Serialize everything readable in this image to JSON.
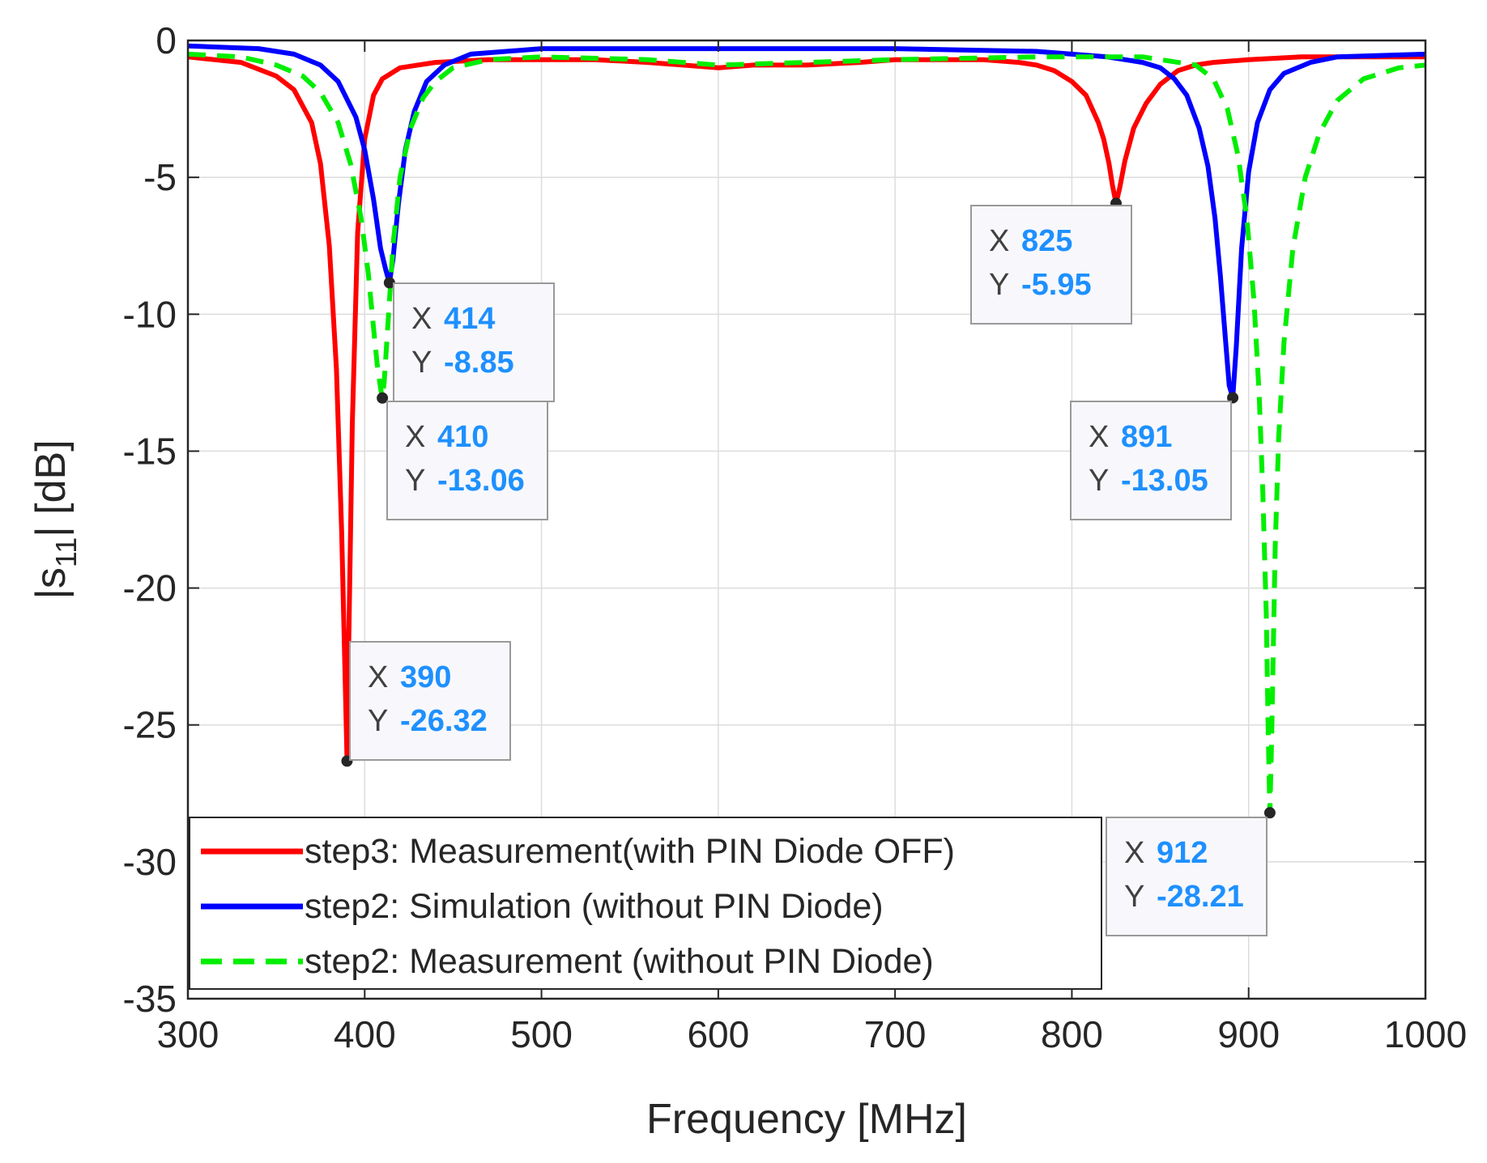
{
  "chart_data": {
    "type": "line",
    "xlabel": "Frequency [MHz]",
    "ylabel_main": "|s",
    "ylabel_sub": "11",
    "ylabel_tail": "| [dB]",
    "xlim": [
      300,
      1000
    ],
    "ylim": [
      -35,
      0
    ],
    "xticks": [
      300,
      400,
      500,
      600,
      700,
      800,
      900,
      1000
    ],
    "yticks": [
      0,
      -5,
      -10,
      -15,
      -20,
      -25,
      -30,
      -35
    ],
    "grid": true,
    "legend_position": "bottom-left",
    "series": [
      {
        "name": "step3: Measurement(with PIN Diode OFF)",
        "color": "#ff0000",
        "style": "solid",
        "x": [
          300,
          330,
          350,
          360,
          370,
          375,
          380,
          384,
          387,
          389,
          390,
          391,
          393,
          396,
          400,
          405,
          410,
          420,
          440,
          470,
          500,
          530,
          560,
          580,
          600,
          620,
          650,
          680,
          700,
          720,
          750,
          770,
          780,
          790,
          800,
          808,
          815,
          818,
          821,
          823,
          825,
          827,
          830,
          835,
          842,
          850,
          860,
          870,
          880,
          900,
          930,
          960,
          1000
        ],
        "values": [
          -0.6,
          -0.8,
          -1.3,
          -1.8,
          -3.0,
          -4.5,
          -7.5,
          -12.0,
          -18.0,
          -23.5,
          -26.32,
          -22.0,
          -14.0,
          -7.0,
          -3.6,
          -2.0,
          -1.4,
          -1.0,
          -0.8,
          -0.7,
          -0.7,
          -0.7,
          -0.8,
          -0.9,
          -1.0,
          -0.9,
          -0.9,
          -0.8,
          -0.7,
          -0.7,
          -0.7,
          -0.8,
          -0.9,
          -1.1,
          -1.5,
          -2.0,
          -3.0,
          -3.6,
          -4.5,
          -5.3,
          -5.95,
          -5.4,
          -4.4,
          -3.2,
          -2.3,
          -1.6,
          -1.1,
          -0.9,
          -0.8,
          -0.7,
          -0.6,
          -0.6,
          -0.6
        ]
      },
      {
        "name": "step2: Simulation (without PIN Diode)",
        "color": "#0000ff",
        "style": "solid",
        "x": [
          300,
          340,
          360,
          375,
          385,
          395,
          400,
          405,
          409,
          412,
          414,
          416,
          419,
          423,
          428,
          435,
          445,
          460,
          500,
          600,
          700,
          780,
          820,
          840,
          850,
          858,
          865,
          872,
          877,
          881,
          884,
          887,
          889,
          891,
          893,
          896,
          900,
          905,
          912,
          920,
          935,
          950,
          1000
        ],
        "values": [
          -0.2,
          -0.3,
          -0.5,
          -0.9,
          -1.5,
          -2.8,
          -4.0,
          -5.8,
          -7.6,
          -8.4,
          -8.85,
          -8.0,
          -6.0,
          -4.0,
          -2.6,
          -1.5,
          -0.9,
          -0.5,
          -0.3,
          -0.3,
          -0.3,
          -0.4,
          -0.6,
          -0.8,
          -1.0,
          -1.4,
          -2.0,
          -3.2,
          -4.6,
          -6.5,
          -8.6,
          -11.0,
          -12.6,
          -13.05,
          -11.2,
          -7.6,
          -4.8,
          -3.0,
          -1.8,
          -1.2,
          -0.8,
          -0.6,
          -0.5
        ]
      },
      {
        "name": "step2: Measurement (without PIN Diode)",
        "color": "#00ee00",
        "style": "dashed",
        "x": [
          300,
          330,
          350,
          365,
          375,
          385,
          392,
          398,
          402,
          405,
          407,
          409,
          410,
          411,
          413,
          416,
          420,
          426,
          433,
          440,
          450,
          470,
          500,
          560,
          600,
          650,
          700,
          780,
          840,
          870,
          880,
          888,
          894,
          899,
          903,
          906,
          908,
          910,
          911,
          912,
          913,
          914,
          915,
          917,
          920,
          925,
          932,
          940,
          950,
          965,
          985,
          1000
        ],
        "values": [
          -0.5,
          -0.6,
          -0.9,
          -1.3,
          -1.9,
          -3.0,
          -4.5,
          -6.5,
          -8.5,
          -10.5,
          -11.8,
          -12.7,
          -13.06,
          -12.5,
          -10.5,
          -7.5,
          -5.0,
          -3.2,
          -2.1,
          -1.5,
          -1.0,
          -0.7,
          -0.6,
          -0.7,
          -0.9,
          -0.8,
          -0.7,
          -0.6,
          -0.6,
          -0.9,
          -1.4,
          -2.5,
          -4.2,
          -6.5,
          -9.5,
          -13.0,
          -16.5,
          -21.0,
          -25.0,
          -28.21,
          -25.5,
          -22.0,
          -18.5,
          -14.5,
          -11.0,
          -7.6,
          -5.0,
          -3.4,
          -2.2,
          -1.4,
          -1.0,
          -0.9
        ]
      }
    ],
    "datatips": [
      {
        "x_label": "X",
        "y_label": "Y",
        "x": "414",
        "y": "-8.85",
        "px": 414,
        "py": -8.85
      },
      {
        "x_label": "X",
        "y_label": "Y",
        "x": "410",
        "y": "-13.06",
        "px": 410,
        "py": -13.06
      },
      {
        "x_label": "X",
        "y_label": "Y",
        "x": "390",
        "y": "-26.32",
        "px": 390,
        "py": -26.32
      },
      {
        "x_label": "X",
        "y_label": "Y",
        "x": "825",
        "y": "-5.95",
        "px": 825,
        "py": -5.95
      },
      {
        "x_label": "X",
        "y_label": "Y",
        "x": "891",
        "y": "-13.05",
        "px": 891,
        "py": -13.05
      },
      {
        "x_label": "X",
        "y_label": "Y",
        "x": "912",
        "y": "-28.21",
        "px": 912,
        "py": -28.21
      }
    ]
  }
}
